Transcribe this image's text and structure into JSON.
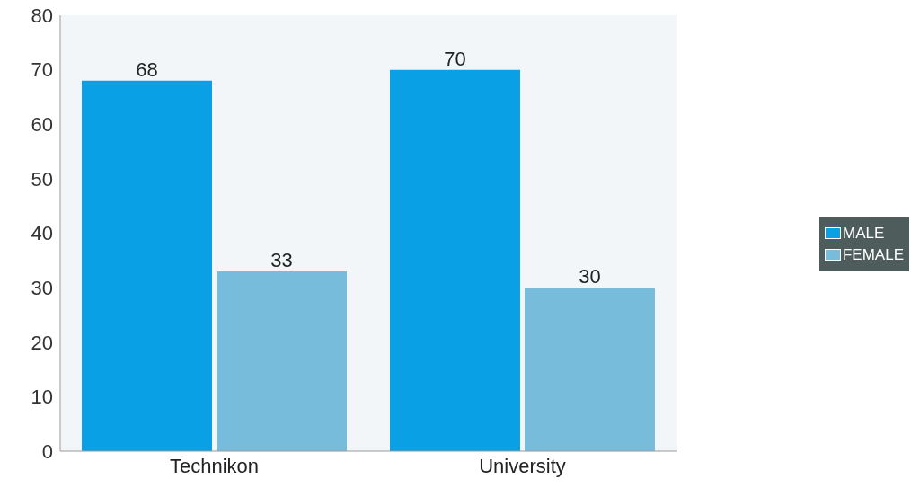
{
  "chart_data": {
    "type": "bar",
    "categories": [
      "Technikon",
      "University"
    ],
    "series": [
      {
        "name": "MALE",
        "color": "#0aa0e6",
        "values": [
          68,
          70
        ]
      },
      {
        "name": "FEMALE",
        "color": "#78bcdc",
        "values": [
          33,
          30
        ]
      }
    ],
    "ylim": [
      0,
      80
    ],
    "yticks": [
      0,
      10,
      20,
      30,
      40,
      50,
      60,
      70,
      80
    ],
    "grid": false,
    "legend": "right",
    "data_labels": true
  }
}
